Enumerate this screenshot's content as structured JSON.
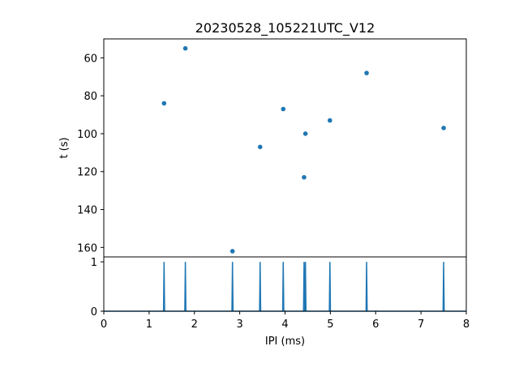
{
  "chart_data": [
    {
      "type": "scatter",
      "title": "20230528_105221UTC_V12",
      "xlabel": "",
      "ylabel": "t (s)",
      "xlim": [
        0,
        8
      ],
      "ylim": [
        165,
        50
      ],
      "y_inverted": true,
      "yticks": [
        60,
        80,
        100,
        120,
        140,
        160
      ],
      "grid": false,
      "color": "#1f77b4",
      "points": [
        {
          "x": 1.33,
          "y": 84
        },
        {
          "x": 1.8,
          "y": 55
        },
        {
          "x": 2.84,
          "y": 162
        },
        {
          "x": 3.45,
          "y": 107
        },
        {
          "x": 3.96,
          "y": 87
        },
        {
          "x": 4.42,
          "y": 123
        },
        {
          "x": 4.45,
          "y": 100
        },
        {
          "x": 4.99,
          "y": 93
        },
        {
          "x": 5.8,
          "y": 68
        },
        {
          "x": 7.5,
          "y": 97
        }
      ]
    },
    {
      "type": "line",
      "xlabel": "IPI (ms)",
      "ylabel": "",
      "xlim": [
        0,
        8
      ],
      "ylim": [
        0,
        1.1
      ],
      "xticks": [
        0,
        1,
        2,
        3,
        4,
        5,
        6,
        7,
        8
      ],
      "yticks": [
        0,
        1
      ],
      "grid": false,
      "color": "#1f77b4",
      "spikes_x": [
        1.33,
        1.8,
        2.84,
        3.45,
        3.96,
        4.42,
        4.45,
        4.99,
        5.8,
        7.5
      ],
      "spike_height": 1
    }
  ]
}
